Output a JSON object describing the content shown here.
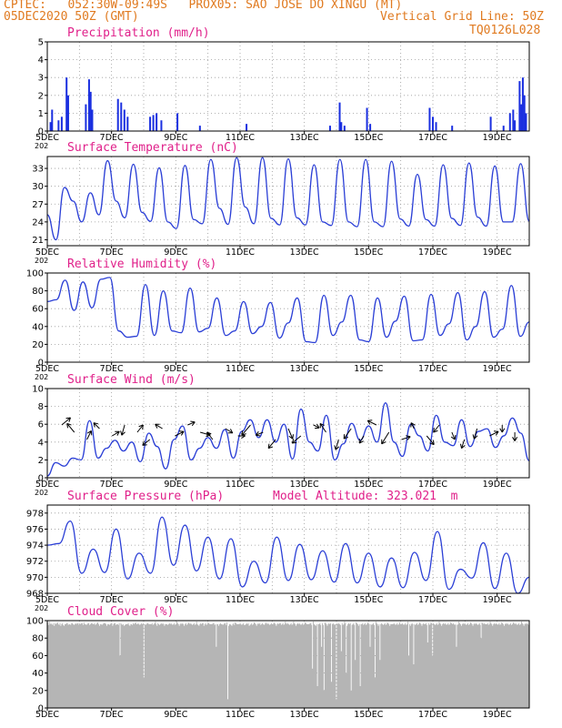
{
  "header": {
    "line1": "CPTEC:   052:30W-09:49S   PROX05: SAO JOSE DO XINGU (MT)",
    "line2_left": "05DEC2020 50Z (GMT)",
    "line2_right": "Vertical Grid Line: 50Z",
    "line3_right": "TQ0126L028"
  },
  "x_ticks": [
    "5DEC",
    "7DEC",
    "9DEC",
    "11DEC",
    "13DEC",
    "15DEC",
    "17DEC",
    "19DEC"
  ],
  "year_fragment": "202",
  "model_altitude": "Model Altitude: 323.021  m",
  "colors": {
    "line": "#2b3fd6",
    "bar": "#1a2fe0",
    "title": "#e0208a",
    "header": "#e07a20",
    "cloud": "#b5b5b5",
    "grid": "#9a9a9a"
  },
  "chart_data": [
    {
      "type": "bar",
      "title": "Precipitation (mm/h)",
      "ylim": [
        0,
        5
      ],
      "yticks": [
        0,
        1,
        2,
        3,
        4,
        5
      ],
      "x_range_days": [
        0,
        15
      ],
      "values": [
        [
          0.1,
          0.5
        ],
        [
          0.15,
          1.2
        ],
        [
          0.35,
          0.6
        ],
        [
          0.45,
          0.8
        ],
        [
          0.6,
          3.0
        ],
        [
          0.65,
          2.0
        ],
        [
          1.2,
          1.5
        ],
        [
          1.3,
          2.9
        ],
        [
          1.35,
          2.2
        ],
        [
          1.4,
          1.2
        ],
        [
          2.2,
          1.8
        ],
        [
          2.3,
          1.6
        ],
        [
          2.4,
          1.2
        ],
        [
          2.5,
          0.8
        ],
        [
          3.2,
          0.8
        ],
        [
          3.3,
          0.9
        ],
        [
          3.4,
          1.0
        ],
        [
          3.55,
          0.6
        ],
        [
          4.05,
          1.0
        ],
        [
          4.75,
          0.3
        ],
        [
          6.2,
          0.4
        ],
        [
          8.8,
          0.3
        ],
        [
          9.1,
          1.6
        ],
        [
          9.15,
          0.5
        ],
        [
          9.25,
          0.3
        ],
        [
          9.95,
          1.3
        ],
        [
          10.05,
          0.4
        ],
        [
          11.9,
          1.3
        ],
        [
          12.0,
          0.8
        ],
        [
          12.1,
          0.5
        ],
        [
          12.6,
          0.3
        ],
        [
          13.8,
          0.8
        ],
        [
          14.2,
          0.3
        ],
        [
          14.4,
          1.0
        ],
        [
          14.5,
          1.2
        ],
        [
          14.55,
          0.6
        ],
        [
          14.7,
          2.8
        ],
        [
          14.75,
          1.5
        ],
        [
          14.8,
          3.0
        ],
        [
          14.85,
          2.0
        ],
        [
          14.9,
          1.0
        ]
      ]
    },
    {
      "type": "line",
      "title": "Surface Temperature (nC)",
      "ylim": [
        20,
        35
      ],
      "yticks": [
        21,
        24,
        27,
        30,
        33
      ],
      "values": [
        25.2,
        21,
        29.8,
        27.5,
        24,
        28.9,
        25.2,
        34.3,
        27.5,
        24.7,
        33.7,
        25.6,
        24.1,
        33.1,
        24,
        22.9,
        33.5,
        24.4,
        23.7,
        34.5,
        26.3,
        23.6,
        34.8,
        26.5,
        23.7,
        34.8,
        24.6,
        23.5,
        34.6,
        24.7,
        23.5,
        33.6,
        24,
        23.4,
        34.5,
        24,
        23.2,
        34.5,
        24,
        23.2,
        34.2,
        24.5,
        23.3,
        32,
        24.4,
        23.3,
        33.6,
        24.6,
        23.4,
        33.9,
        24.8,
        23.3,
        33.4,
        24,
        24,
        33.8,
        24.1
      ]
    },
    {
      "type": "line",
      "title": "Relative Humidity (%)",
      "ylim": [
        0,
        100
      ],
      "yticks": [
        0,
        20,
        40,
        60,
        80,
        100
      ],
      "values": [
        68,
        70,
        92,
        58,
        90,
        61,
        93,
        95,
        35,
        28,
        29,
        87,
        30,
        80,
        35,
        33,
        83,
        34,
        38,
        72,
        30,
        35,
        68,
        32,
        40,
        67,
        27,
        44,
        72,
        23,
        22,
        75,
        30,
        45,
        75,
        25,
        23,
        72,
        28,
        46,
        74,
        24,
        25,
        76,
        30,
        43,
        78,
        25,
        40,
        79,
        28,
        37,
        86,
        29,
        45
      ]
    },
    {
      "type": "line",
      "title": "Surface Wind (m/s)",
      "ylim": [
        0,
        10
      ],
      "yticks": [
        0,
        2,
        4,
        6,
        8,
        10
      ],
      "values": [
        0.2,
        1.7,
        1.3,
        2.2,
        2.0,
        6.4,
        2.2,
        3.3,
        4.2,
        3.0,
        4.0,
        1.8,
        5.0,
        3.5,
        1.0,
        4.3,
        5.8,
        2.0,
        3.3,
        4.5,
        3.3,
        5.4,
        2.2,
        5.2,
        6.5,
        4.5,
        6.5,
        4.0,
        6.0,
        2.1,
        7.7,
        4.0,
        3.0,
        7.0,
        2.0,
        3.8,
        6.1,
        4.2,
        5.8,
        4.0,
        8.4,
        4.0,
        2.4,
        6.0,
        4.7,
        3.0,
        7.0,
        4.0,
        3.6,
        6.5,
        3.5,
        5.2,
        5.5,
        3.4,
        4.7,
        6.7,
        5.0,
        1.9
      ],
      "arrows": [
        [
          0.6,
          -0.5
        ],
        [
          -0.5,
          -0.6
        ],
        [
          0.3,
          -0.6
        ],
        [
          -0.4,
          -0.4
        ],
        [
          0.5,
          -0.3
        ],
        [
          -0.2,
          0.7
        ],
        [
          0.4,
          -0.5
        ],
        [
          -0.5,
          0.4
        ],
        [
          -0.5,
          -0.3
        ],
        [
          0.6,
          -0.3
        ],
        [
          0.5,
          -0.2
        ],
        [
          0.7,
          0.2
        ],
        [
          -0.4,
          -0.5
        ],
        [
          0.5,
          0.3
        ],
        [
          0.5,
          0.0
        ],
        [
          -0.6,
          0.7
        ],
        [
          -0.5,
          0.2
        ],
        [
          -0.5,
          0.6
        ],
        [
          0.3,
          0.7
        ],
        [
          -0.6,
          0.5
        ],
        [
          0.4,
          0.2
        ],
        [
          -0.4,
          -0.6
        ],
        [
          -0.2,
          0.7
        ],
        [
          -0.5,
          0.7
        ],
        [
          -0.3,
          0.5
        ],
        [
          -0.6,
          -0.3
        ],
        [
          -0.5,
          0.8
        ],
        [
          0.6,
          -0.2
        ],
        [
          -0.2,
          -0.4
        ],
        [
          0.5,
          0.6
        ],
        [
          -0.4,
          0.5
        ],
        [
          0.2,
          0.5
        ],
        [
          -0.2,
          0.6
        ],
        [
          -0.2,
          0.7
        ],
        [
          0.6,
          -0.3
        ],
        [
          0.0,
          0.5
        ],
        [
          0.0,
          0.6
        ]
      ]
    },
    {
      "type": "line",
      "title": "Surface Pressure (hPa)",
      "ylim": [
        968,
        979
      ],
      "yticks": [
        968,
        970,
        972,
        974,
        976,
        978
      ],
      "values": [
        974,
        974.2,
        977,
        970.5,
        973.5,
        970.6,
        976,
        969.8,
        973,
        970.5,
        977.5,
        971.5,
        976.5,
        970.8,
        975,
        969.8,
        974.8,
        968.8,
        972,
        969.3,
        975,
        969.6,
        974.1,
        969.7,
        973.3,
        969.4,
        974.2,
        969.3,
        973,
        968.8,
        972.4,
        968.7,
        973.1,
        969.6,
        975.7,
        968.5,
        971,
        969.9,
        974.3,
        968.6,
        973,
        968,
        970
      ]
    },
    {
      "type": "area",
      "title": "Cloud Cover (%)",
      "ylim": [
        0,
        100
      ],
      "yticks": [
        0,
        20,
        40,
        60,
        80,
        100
      ],
      "values": [
        98,
        95,
        99,
        96,
        97,
        96,
        95,
        97,
        94,
        97,
        96,
        97,
        98,
        96,
        95,
        97,
        94,
        96,
        97,
        95,
        94,
        96,
        96,
        97,
        97,
        95,
        96,
        96,
        95,
        97,
        97,
        96,
        95,
        96,
        97,
        96,
        97,
        97,
        95,
        97,
        96,
        97,
        97,
        95,
        98,
        96,
        96,
        95,
        96,
        97,
        97,
        95,
        96,
        97,
        97,
        96,
        96,
        97,
        95,
        96,
        97,
        98,
        96,
        94,
        96,
        96,
        95,
        96,
        97,
        97,
        97,
        96,
        94,
        96,
        96,
        95,
        96,
        97,
        97,
        94,
        96,
        97,
        97,
        95,
        96,
        96,
        95,
        97,
        97,
        97,
        96,
        95,
        96,
        94,
        95,
        96,
        96,
        96,
        97,
        95,
        94,
        96,
        96,
        95,
        97,
        96,
        97,
        98,
        96,
        96,
        97,
        96,
        95,
        96,
        97,
        96,
        97,
        99,
        96,
        95,
        96,
        97,
        97,
        96,
        96,
        96,
        96,
        97,
        95,
        96,
        97,
        99,
        96,
        94,
        97,
        96,
        95,
        96,
        97,
        96,
        97,
        96,
        94,
        96,
        96,
        96,
        95,
        96,
        97,
        96,
        97,
        96,
        95,
        96,
        97,
        95,
        96,
        99,
        97,
        96,
        94,
        96,
        97,
        96,
        97,
        96,
        94,
        96,
        97,
        95,
        96,
        98,
        97,
        96,
        97,
        96,
        95,
        96,
        97,
        95,
        96,
        99,
        96,
        95,
        94,
        96,
        97,
        96,
        97,
        97,
        94,
        96,
        97,
        95,
        96,
        98,
        97,
        96,
        96,
        96,
        96,
        97,
        97,
        95,
        96,
        99,
        96,
        96,
        94,
        96,
        97,
        96,
        96,
        95,
        96,
        97,
        97,
        95,
        98,
        96,
        94,
        96,
        96,
        95,
        94,
        96,
        97,
        95,
        98,
        97,
        96,
        96,
        96,
        96,
        97,
        96,
        95,
        96,
        97,
        95,
        95,
        96,
        97,
        96,
        97,
        94,
        95,
        96,
        97,
        95,
        96,
        98,
        97,
        96,
        94,
        96,
        97,
        96,
        97,
        95,
        96,
        97,
        96,
        95,
        96,
        98,
        97,
        96,
        97,
        96,
        95,
        96,
        97,
        95,
        96,
        98,
        97,
        96,
        94,
        96,
        97,
        96,
        97,
        97,
        95,
        96,
        97,
        95,
        96,
        99,
        97,
        96,
        97,
        96,
        95,
        96,
        97,
        95,
        96,
        99,
        97,
        96,
        94,
        96,
        97,
        96,
        97,
        96,
        95,
        96,
        97,
        95,
        96,
        98,
        97,
        96,
        96,
        96,
        96,
        97,
        97,
        95,
        96,
        99,
        96,
        95,
        94,
        96,
        97,
        96,
        96,
        97,
        95,
        96,
        97,
        95,
        96,
        98,
        97,
        96,
        94,
        96,
        97,
        96,
        97,
        95,
        96,
        97,
        96,
        95,
        96,
        98,
        97,
        96,
        97,
        96,
        95,
        96,
        97,
        95,
        96,
        99,
        97,
        96,
        94,
        96,
        97,
        96,
        97,
        96,
        95,
        96,
        97,
        95,
        96,
        98,
        97,
        96,
        94,
        96,
        96,
        96,
        96,
        97,
        95,
        96,
        97,
        95,
        96,
        98,
        97,
        96,
        97,
        96,
        95,
        96,
        97,
        95,
        96,
        99,
        97,
        96,
        94,
        96,
        97,
        96,
        97,
        96,
        95,
        96,
        97,
        95,
        96,
        98,
        97,
        96,
        94,
        96,
        96,
        96,
        96,
        97,
        96,
        95,
        96,
        97,
        95,
        96,
        98,
        96,
        96,
        97,
        96,
        95,
        96,
        97,
        95,
        96,
        99,
        97,
        96,
        94,
        96,
        97,
        96,
        97,
        96,
        95,
        96,
        97,
        95,
        96,
        98,
        97,
        96,
        94,
        96,
        97,
        96,
        96,
        97,
        95,
        96,
        97,
        95,
        96,
        98,
        97,
        96,
        97,
        96,
        95,
        96,
        97,
        95,
        96,
        99,
        97,
        96,
        94,
        96,
        97,
        96,
        97,
        96,
        95,
        96,
        97,
        95,
        96,
        98,
        97,
        96,
        97,
        96,
        95,
        96,
        97,
        95,
        96,
        99,
        97,
        96,
        94,
        96,
        97,
        96,
        97,
        96,
        95,
        96,
        97,
        95,
        96,
        98,
        97,
        96,
        94,
        96,
        97,
        96,
        97,
        96,
        95,
        96,
        97,
        95,
        96,
        98,
        97,
        96,
        97,
        96,
        96,
        96,
        97,
        95,
        96,
        99,
        97,
        96,
        94,
        96,
        97,
        96,
        97,
        96,
        95,
        96,
        97,
        95,
        96,
        98,
        97,
        96,
        94,
        96,
        97,
        96,
        97,
        96,
        95,
        96,
        97,
        95,
        96,
        98,
        97,
        96,
        97,
        96,
        95,
        96,
        97,
        95,
        96,
        99,
        97,
        96,
        94,
        96,
        97,
        96,
        97,
        96,
        95
      ]
    }
  ]
}
